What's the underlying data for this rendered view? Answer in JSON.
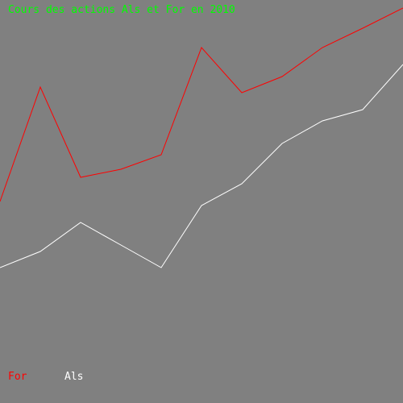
{
  "chart_data": {
    "type": "line",
    "title": "Cours des actions Als et For en 2010",
    "x": [
      1,
      2,
      3,
      4,
      5,
      6,
      7,
      8,
      9,
      10,
      11
    ],
    "series": [
      {
        "name": "For",
        "color": "#ff0000",
        "values": [
          250,
          392,
          280,
          290,
          308,
          441,
          385,
          405,
          441,
          465,
          490
        ]
      },
      {
        "name": "Als",
        "color": "#ffffff",
        "values": [
          168,
          188,
          224,
          196,
          168,
          245,
          272,
          322,
          350,
          364,
          420
        ]
      }
    ],
    "ylim": [
      0,
      500
    ],
    "grid": false,
    "legend": "bottom-left",
    "colors": {
      "background": "#808080",
      "title": "#00ff00"
    }
  }
}
